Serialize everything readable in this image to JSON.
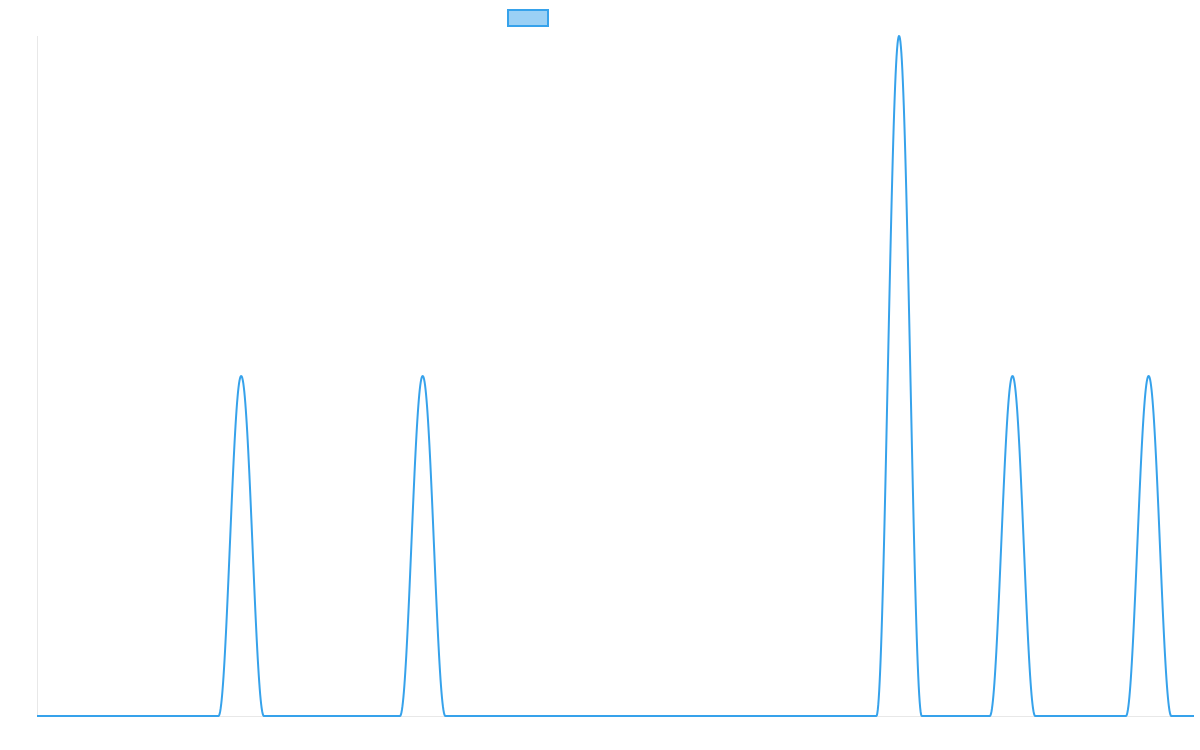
{
  "chart_data": {
    "type": "line",
    "title": "",
    "xlabel": "",
    "ylabel": "",
    "x_range": [
      0,
      51
    ],
    "ylim": [
      0,
      2
    ],
    "grid": false,
    "legend": {
      "placement": "top-center",
      "entries": [
        {
          "label": "",
          "color": "#36a2eb",
          "fill": "#9ad0f5"
        }
      ]
    },
    "series": [
      {
        "color": "#36a2eb",
        "baseline": 0,
        "peaks": [
          {
            "x": 9,
            "y": 1
          },
          {
            "x": 17,
            "y": 1
          },
          {
            "x": 38,
            "y": 2
          },
          {
            "x": 43,
            "y": 1
          },
          {
            "x": 49,
            "y": 1
          }
        ],
        "peak_half_width": 1
      }
    ]
  }
}
